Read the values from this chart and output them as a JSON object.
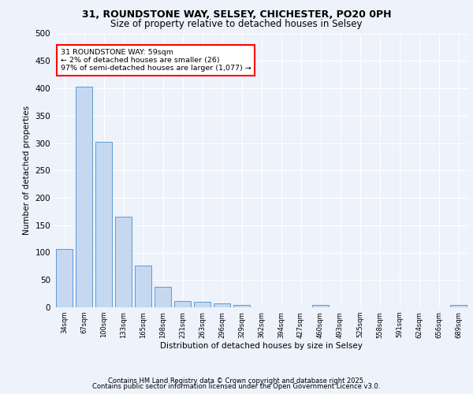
{
  "title1": "31, ROUNDSTONE WAY, SELSEY, CHICHESTER, PO20 0PH",
  "title2": "Size of property relative to detached houses in Selsey",
  "xlabel": "Distribution of detached houses by size in Selsey",
  "ylabel": "Number of detached properties",
  "categories": [
    "34sqm",
    "67sqm",
    "100sqm",
    "133sqm",
    "165sqm",
    "198sqm",
    "231sqm",
    "263sqm",
    "296sqm",
    "329sqm",
    "362sqm",
    "394sqm",
    "427sqm",
    "460sqm",
    "493sqm",
    "525sqm",
    "558sqm",
    "591sqm",
    "624sqm",
    "656sqm",
    "689sqm"
  ],
  "values": [
    107,
    403,
    302,
    165,
    76,
    38,
    12,
    10,
    7,
    4,
    0,
    0,
    0,
    4,
    0,
    0,
    0,
    0,
    0,
    0,
    4
  ],
  "bar_color": "#c5d8f0",
  "bar_edge_color": "#5b9bd5",
  "annotation_text": "31 ROUNDSTONE WAY: 59sqm\n← 2% of detached houses are smaller (26)\n97% of semi-detached houses are larger (1,077) →",
  "ylim": [
    0,
    500
  ],
  "yticks": [
    0,
    50,
    100,
    150,
    200,
    250,
    300,
    350,
    400,
    450,
    500
  ],
  "footer1": "Contains HM Land Registry data © Crown copyright and database right 2025.",
  "footer2": "Contains public sector information licensed under the Open Government Licence v3.0.",
  "bg_color": "#edf2fb",
  "plot_bg_color": "#edf2fb",
  "grid_color": "#ffffff",
  "title1_fontsize": 9,
  "title2_fontsize": 8.5,
  "ylabel_fontsize": 7.5,
  "xlabel_fontsize": 7.5,
  "ytick_fontsize": 7.5,
  "xtick_fontsize": 6,
  "ann_fontsize": 6.8,
  "footer_fontsize": 6
}
